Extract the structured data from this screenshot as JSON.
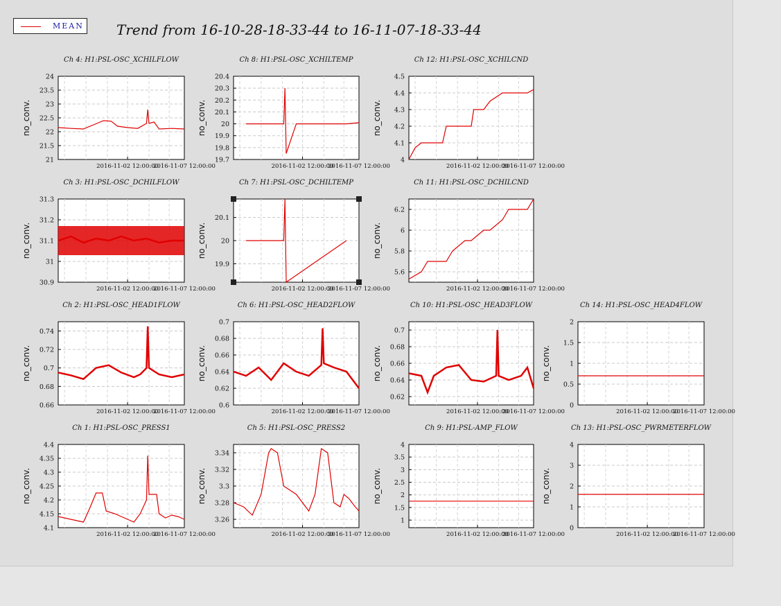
{
  "title": "Trend from 16-10-28-18-33-44 to 16-11-07-18-33-44",
  "legend": {
    "label": "MEAN",
    "color": "#e00000"
  },
  "line_color": "#e00000",
  "chart_data": [
    {
      "id": "ch4",
      "type": "line",
      "title": "Ch 4: H1:PSL-OSC_XCHILFLOW",
      "ylabel": "no_conv.",
      "ylim": [
        21,
        24
      ],
      "yticks": [
        "21",
        "21.5",
        "22",
        "22.5",
        "23",
        "23.5",
        "24"
      ],
      "xticks": [
        "2016-11-02 12:00:00",
        "2016-11-07 12:00:00"
      ],
      "x": [
        0,
        0.1,
        0.2,
        0.28,
        0.36,
        0.42,
        0.47,
        0.55,
        0.63,
        0.7,
        0.71,
        0.72,
        0.76,
        0.8,
        0.9,
        1
      ],
      "y": [
        22.15,
        22.12,
        22.1,
        22.25,
        22.4,
        22.38,
        22.2,
        22.15,
        22.12,
        22.3,
        22.8,
        22.3,
        22.35,
        22.1,
        22.12,
        22.1
      ]
    },
    {
      "id": "ch8",
      "type": "line",
      "title": "Ch 8: H1:PSL-OSC_XCHILTEMP",
      "ylabel": "no_conv.",
      "ylim": [
        19.7,
        20.4
      ],
      "yticks": [
        "19.7",
        "19.8",
        "19.9",
        "20",
        "20.1",
        "20.2",
        "20.3",
        "20.4"
      ],
      "xticks": [
        "2016-11-02 12:00:00",
        "2016-11-07 12:00:00"
      ],
      "x": [
        0.1,
        0.2,
        0.3,
        0.4,
        0.41,
        0.42,
        0.5,
        0.6,
        0.7,
        0.8,
        0.9,
        1
      ],
      "y": [
        20,
        20,
        20,
        20,
        20.3,
        19.75,
        20,
        20,
        20,
        20,
        20,
        20.01
      ]
    },
    {
      "id": "ch12",
      "type": "line",
      "title": "Ch 12: H1:PSL-OSC_XCHILCND",
      "ylabel": "no_conv.",
      "ylim": [
        4,
        4.5
      ],
      "yticks": [
        "4",
        "4.1",
        "4.2",
        "4.3",
        "4.4",
        "4.5"
      ],
      "xticks": [
        "2016-11-02 12:00:00",
        "2016-11-07 12:00:00"
      ],
      "x": [
        0,
        0.05,
        0.1,
        0.2,
        0.27,
        0.3,
        0.42,
        0.5,
        0.52,
        0.6,
        0.65,
        0.75,
        0.8,
        0.85,
        0.95,
        1
      ],
      "y": [
        4.0,
        4.07,
        4.1,
        4.1,
        4.1,
        4.2,
        4.2,
        4.2,
        4.3,
        4.3,
        4.35,
        4.4,
        4.4,
        4.4,
        4.4,
        4.42
      ]
    },
    {
      "id": "ch3",
      "type": "line",
      "title": "Ch 3: H1:PSL-OSC_DCHILFLOW",
      "ylabel": "no_conv.",
      "ylim": [
        30.9,
        31.3
      ],
      "yticks": [
        "30.9",
        "31",
        "31.1",
        "31.2",
        "31.3"
      ],
      "xticks": [
        "2016-11-02 12:00:00",
        "2016-11-07 12:00:00"
      ],
      "x": [
        0,
        0.1,
        0.2,
        0.3,
        0.4,
        0.5,
        0.6,
        0.7,
        0.8,
        0.9,
        1
      ],
      "y": [
        31.1,
        31.12,
        31.09,
        31.11,
        31.1,
        31.12,
        31.1,
        31.11,
        31.09,
        31.1,
        31.1
      ]
    },
    {
      "id": "ch7",
      "type": "line",
      "title": "Ch 7: H1:PSL-OSC_DCHILTEMP",
      "ylabel": "no_conv.",
      "ylim": [
        19.82,
        20.18
      ],
      "yticks": [
        "19.9",
        "20",
        "20.1"
      ],
      "xticks": [
        "2016-11-02 12:00:00",
        "2016-11-07 12:00:00"
      ],
      "x": [
        0.1,
        0.4,
        0.41,
        0.42,
        0.9
      ],
      "y": [
        20,
        20,
        20.18,
        19.82,
        20
      ]
    },
    {
      "id": "ch11",
      "type": "line",
      "title": "Ch 11: H1:PSL-OSC_DCHILCND",
      "ylabel": "no_conv.",
      "ylim": [
        5.5,
        6.3
      ],
      "yticks": [
        "5.6",
        "5.8",
        "6",
        "6.2"
      ],
      "xticks": [
        "2016-11-02 12:00:00",
        "2016-11-07 12:00:00"
      ],
      "x": [
        0,
        0.1,
        0.15,
        0.3,
        0.35,
        0.45,
        0.5,
        0.6,
        0.65,
        0.75,
        0.8,
        0.95,
        1
      ],
      "y": [
        5.53,
        5.6,
        5.7,
        5.7,
        5.8,
        5.9,
        5.9,
        6.0,
        6.0,
        6.1,
        6.2,
        6.2,
        6.3
      ]
    },
    {
      "id": "ch2",
      "type": "line",
      "title": "Ch 2: H1:PSL-OSC_HEAD1FLOW",
      "ylabel": "no_conv.",
      "ylim": [
        0.66,
        0.75
      ],
      "yticks": [
        "0.66",
        "0.68",
        "0.7",
        "0.72",
        "0.74"
      ],
      "xticks": [
        "2016-11-02 12:00:00",
        "2016-11-07 12:00:00"
      ],
      "x": [
        0,
        0.1,
        0.2,
        0.3,
        0.4,
        0.5,
        0.6,
        0.65,
        0.7,
        0.71,
        0.72,
        0.8,
        0.9,
        1
      ],
      "y": [
        0.695,
        0.692,
        0.688,
        0.7,
        0.703,
        0.695,
        0.69,
        0.693,
        0.7,
        0.745,
        0.7,
        0.693,
        0.69,
        0.693
      ]
    },
    {
      "id": "ch6",
      "type": "line",
      "title": "Ch 6: H1:PSL-OSC_HEAD2FLOW",
      "ylabel": "no_conv.",
      "ylim": [
        0.6,
        0.7
      ],
      "yticks": [
        "0.6",
        "0.62",
        "0.64",
        "0.66",
        "0.68",
        "0.7"
      ],
      "xticks": [
        "2016-11-02 12:00:00",
        "2016-11-07 12:00:00"
      ],
      "x": [
        0,
        0.1,
        0.2,
        0.3,
        0.4,
        0.5,
        0.6,
        0.7,
        0.71,
        0.72,
        0.8,
        0.9,
        1
      ],
      "y": [
        0.64,
        0.635,
        0.645,
        0.63,
        0.65,
        0.64,
        0.635,
        0.648,
        0.692,
        0.65,
        0.645,
        0.64,
        0.62
      ]
    },
    {
      "id": "ch10",
      "type": "line",
      "title": "Ch 10: H1:PSL-OSC_HEAD3FLOW",
      "ylabel": "no_conv.",
      "ylim": [
        0.61,
        0.71
      ],
      "yticks": [
        "0.62",
        "0.64",
        "0.66",
        "0.68",
        "0.7"
      ],
      "xticks": [
        "2016-11-02 12:00:00",
        "2016-11-07 12:00:00"
      ],
      "x": [
        0,
        0.1,
        0.15,
        0.2,
        0.3,
        0.4,
        0.5,
        0.6,
        0.7,
        0.71,
        0.72,
        0.8,
        0.9,
        0.95,
        1
      ],
      "y": [
        0.648,
        0.645,
        0.625,
        0.645,
        0.655,
        0.658,
        0.64,
        0.638,
        0.645,
        0.7,
        0.645,
        0.64,
        0.645,
        0.655,
        0.63
      ]
    },
    {
      "id": "ch14",
      "type": "line",
      "title": "Ch 14: H1:PSL-OSC_HEAD4FLOW",
      "ylabel": "no_conv.",
      "ylim": [
        0,
        2
      ],
      "yticks": [
        "0",
        "0.5",
        "1",
        "1.5",
        "2"
      ],
      "xticks": [
        "2016-11-02 12:00:00",
        "2016-11-07 12:00:00"
      ],
      "x": [
        0,
        1
      ],
      "y": [
        0.7,
        0.7
      ]
    },
    {
      "id": "ch1",
      "type": "line",
      "title": "Ch 1: H1:PSL-OSC_PRESS1",
      "ylabel": "no_conv.",
      "ylim": [
        4.1,
        4.4
      ],
      "yticks": [
        "4.1",
        "4.15",
        "4.2",
        "4.25",
        "4.3",
        "4.35",
        "4.4"
      ],
      "xticks": [
        "2016-11-02 12:00:00",
        "2016-11-07 12:00:00"
      ],
      "x": [
        0,
        0.1,
        0.2,
        0.25,
        0.3,
        0.35,
        0.38,
        0.45,
        0.55,
        0.6,
        0.65,
        0.7,
        0.71,
        0.72,
        0.78,
        0.8,
        0.85,
        0.9,
        0.95,
        1
      ],
      "y": [
        4.14,
        4.13,
        4.12,
        4.17,
        4.225,
        4.225,
        4.16,
        4.15,
        4.13,
        4.12,
        4.15,
        4.2,
        4.36,
        4.22,
        4.22,
        4.15,
        4.135,
        4.145,
        4.14,
        4.13
      ]
    },
    {
      "id": "ch5",
      "type": "line",
      "title": "Ch 5: H1:PSL-OSC_PRESS2",
      "ylabel": "no_conv.",
      "ylim": [
        3.25,
        3.35
      ],
      "yticks": [
        "3.26",
        "3.28",
        "3.3",
        "3.32",
        "3.34"
      ],
      "xticks": [
        "2016-11-02 12:00:00",
        "2016-11-07 12:00:00"
      ],
      "x": [
        0,
        0.08,
        0.15,
        0.22,
        0.28,
        0.3,
        0.35,
        0.4,
        0.5,
        0.6,
        0.65,
        0.7,
        0.75,
        0.8,
        0.85,
        0.88,
        0.92,
        0.97,
        1
      ],
      "y": [
        3.28,
        3.275,
        3.265,
        3.29,
        3.34,
        3.345,
        3.34,
        3.3,
        3.29,
        3.27,
        3.29,
        3.345,
        3.34,
        3.28,
        3.275,
        3.29,
        3.285,
        3.275,
        3.27
      ]
    },
    {
      "id": "ch9",
      "type": "line",
      "title": "Ch 9: H1:PSL-AMP_FLOW",
      "ylabel": "no_conv.",
      "ylim": [
        0.7,
        4
      ],
      "yticks": [
        "1",
        "1.5",
        "2",
        "2.5",
        "3",
        "3.5",
        "4"
      ],
      "xticks": [
        "2016-11-02 12:00:00",
        "2016-11-07 12:00:00"
      ],
      "x": [
        0,
        1
      ],
      "y": [
        1.75,
        1.75
      ]
    },
    {
      "id": "ch13",
      "type": "line",
      "title": "Ch 13: H1:PSL-OSC_PWRMETERFLOW",
      "ylabel": "no_conv.",
      "ylim": [
        0,
        4
      ],
      "yticks": [
        "0",
        "1",
        "2",
        "3",
        "4"
      ],
      "xticks": [
        "2016-11-02 12:00:00",
        "2016-11-07 12:00:00"
      ],
      "x": [
        0,
        1
      ],
      "y": [
        1.6,
        1.6
      ]
    }
  ]
}
